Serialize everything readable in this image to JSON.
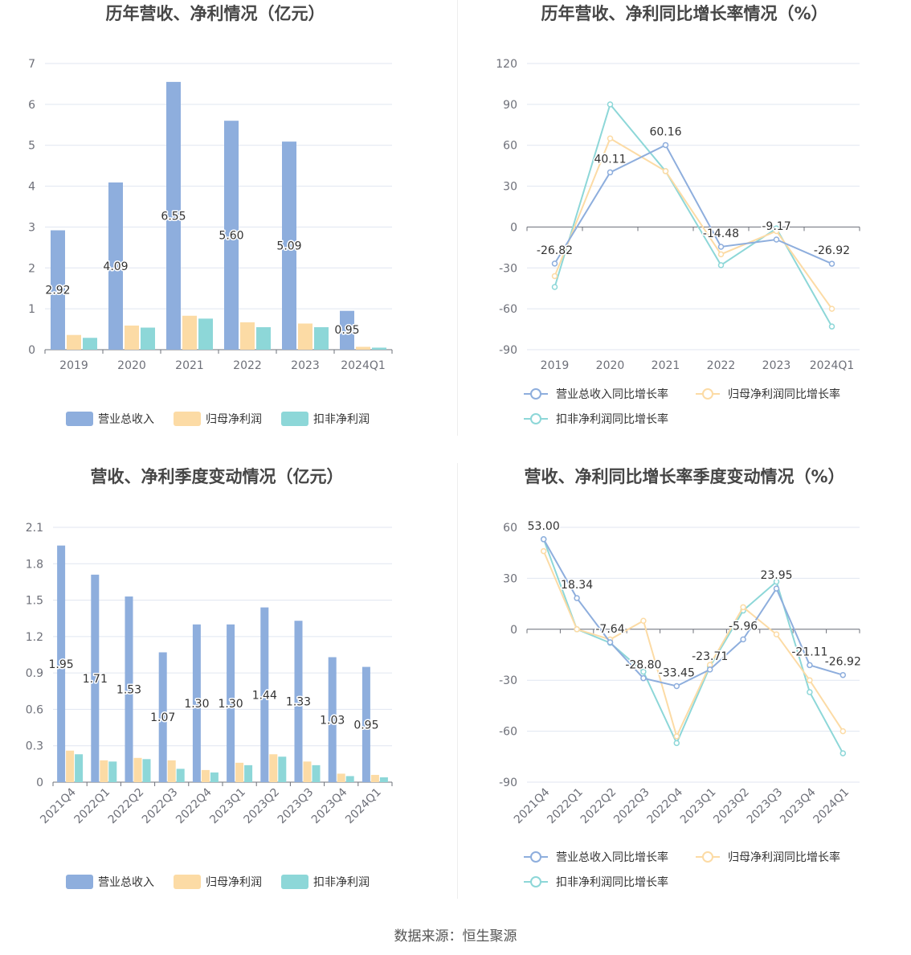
{
  "source": "数据来源：恒生聚源",
  "colors": {
    "revenue": "#8eaedd",
    "net_profit": "#fcdba5",
    "deducted_profit": "#8dd7d8"
  },
  "chart_data": [
    {
      "type": "bar",
      "title": "历年营收、净利情况（亿元）",
      "categories": [
        "2019",
        "2020",
        "2021",
        "2022",
        "2023",
        "2024Q1"
      ],
      "ylim": [
        0,
        7
      ],
      "yticks": [
        0,
        1,
        2,
        3,
        4,
        5,
        6,
        7
      ],
      "grid": true,
      "legend": "bottom",
      "series": [
        {
          "name": "营业总收入",
          "values": [
            2.92,
            4.09,
            6.55,
            5.6,
            5.09,
            0.95
          ],
          "labels": [
            "2.92",
            "4.09",
            "6.55",
            "5.60",
            "5.09",
            "0.95"
          ]
        },
        {
          "name": "归母净利润",
          "values": [
            0.36,
            0.59,
            0.83,
            0.67,
            0.64,
            0.07
          ]
        },
        {
          "name": "扣非净利润",
          "values": [
            0.29,
            0.54,
            0.76,
            0.55,
            0.55,
            0.05
          ]
        }
      ]
    },
    {
      "type": "line",
      "title": "历年营收、净利同比增长率情况（%）",
      "categories": [
        "2019",
        "2020",
        "2021",
        "2022",
        "2023",
        "2024Q1"
      ],
      "ylim": [
        -90,
        120
      ],
      "yticks": [
        -90,
        -60,
        -30,
        0,
        30,
        60,
        90,
        120
      ],
      "grid": true,
      "legend": "bottom",
      "series": [
        {
          "name": "营业总收入同比增长率",
          "values": [
            -26.82,
            40.11,
            60.16,
            -14.48,
            -9.17,
            -26.92
          ],
          "labels": [
            "-26.82",
            "40.11",
            "60.16",
            "-14.48",
            "-9.17",
            "-26.92"
          ]
        },
        {
          "name": "归母净利润同比增长率",
          "values": [
            -36,
            65,
            41,
            -20,
            -3,
            -60
          ]
        },
        {
          "name": "扣非净利润同比增长率",
          "values": [
            -44,
            90,
            41,
            -28,
            -1,
            -73
          ]
        }
      ]
    },
    {
      "type": "bar",
      "title": "营收、净利季度变动情况（亿元）",
      "categories": [
        "2021Q4",
        "2022Q1",
        "2022Q2",
        "2022Q3",
        "2022Q4",
        "2023Q1",
        "2023Q2",
        "2023Q3",
        "2023Q4",
        "2024Q1"
      ],
      "ylim": [
        0,
        2.1
      ],
      "yticks": [
        0,
        0.3,
        0.6,
        0.9,
        1.2,
        1.5,
        1.8,
        2.1
      ],
      "ytick_labels": [
        "0",
        "0.3",
        "0.6",
        "0.9",
        "1.2",
        "1.5",
        "1.8",
        "2.1"
      ],
      "grid": true,
      "legend": "bottom",
      "series": [
        {
          "name": "营业总收入",
          "values": [
            1.95,
            1.71,
            1.53,
            1.07,
            1.3,
            1.3,
            1.44,
            1.33,
            1.03,
            0.95
          ],
          "labels": [
            "1.95",
            "1.71",
            "1.53",
            "1.07",
            "1.30",
            "1.30",
            "1.44",
            "1.33",
            "1.03",
            "0.95"
          ]
        },
        {
          "name": "归母净利润",
          "values": [
            0.26,
            0.18,
            0.2,
            0.18,
            0.1,
            0.16,
            0.23,
            0.17,
            0.07,
            0.06
          ]
        },
        {
          "name": "扣非净利润",
          "values": [
            0.23,
            0.17,
            0.19,
            0.11,
            0.08,
            0.14,
            0.21,
            0.14,
            0.05,
            0.04
          ]
        }
      ]
    },
    {
      "type": "line",
      "title": "营收、净利同比增长率季度变动情况（%）",
      "categories": [
        "2021Q4",
        "2022Q1",
        "2022Q2",
        "2022Q3",
        "2022Q4",
        "2023Q1",
        "2023Q2",
        "2023Q3",
        "2023Q4",
        "2024Q1"
      ],
      "ylim": [
        -90,
        60
      ],
      "yticks": [
        -90,
        -60,
        -30,
        0,
        30,
        60
      ],
      "grid": true,
      "legend": "bottom",
      "series": [
        {
          "name": "营业总收入同比增长率",
          "values": [
            53.0,
            18.34,
            -7.64,
            -28.8,
            -33.45,
            -23.71,
            -5.96,
            23.95,
            -21.11,
            -26.92
          ],
          "labels": [
            "53.00",
            "18.34",
            "-7.64",
            "-28.80",
            "-33.45",
            "-23.71",
            "-5.96",
            "23.95",
            "-21.11",
            "-26.92"
          ]
        },
        {
          "name": "归母净利润同比增长率",
          "values": [
            46,
            0,
            -6,
            5,
            -63,
            -21,
            13,
            -3,
            -30,
            -60
          ]
        },
        {
          "name": "扣非净利润同比增长率",
          "values": [
            53,
            0,
            -8,
            -25,
            -67,
            -22,
            11,
            28,
            -37,
            -73
          ]
        }
      ]
    }
  ]
}
